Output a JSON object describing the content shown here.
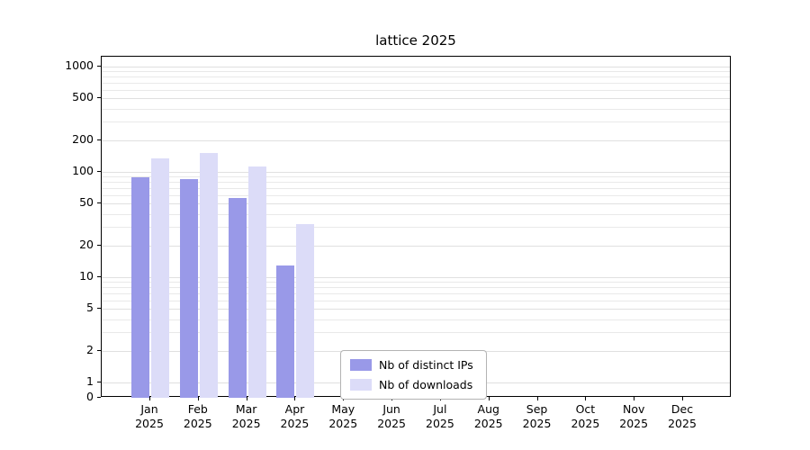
{
  "chart_data": {
    "type": "bar",
    "title": "lattice 2025",
    "categories": [
      "Jan",
      "Feb",
      "Mar",
      "Apr",
      "May",
      "Jun",
      "Jul",
      "Aug",
      "Sep",
      "Oct",
      "Nov",
      "Dec"
    ],
    "year_label": "2025",
    "series": [
      {
        "name": "Nb of distinct IPs",
        "color": "#9999e8",
        "values": [
          88,
          85,
          56,
          13,
          0,
          0,
          0,
          0,
          0,
          0,
          0,
          0
        ]
      },
      {
        "name": "Nb of downloads",
        "color": "#dcdcf8",
        "values": [
          135,
          152,
          112,
          32,
          0,
          0,
          0,
          0,
          0,
          0,
          0,
          0
        ]
      }
    ],
    "yscale": "log-with-zero-floor",
    "yticks": [
      0,
      1,
      2,
      5,
      10,
      20,
      50,
      100,
      200,
      500,
      1000
    ],
    "ylim": [
      0,
      1240
    ],
    "grid": true,
    "legend_position": "lower-center"
  },
  "colors": {
    "grid": "#e9e9e9",
    "axis": "#000000",
    "background": "#ffffff"
  }
}
